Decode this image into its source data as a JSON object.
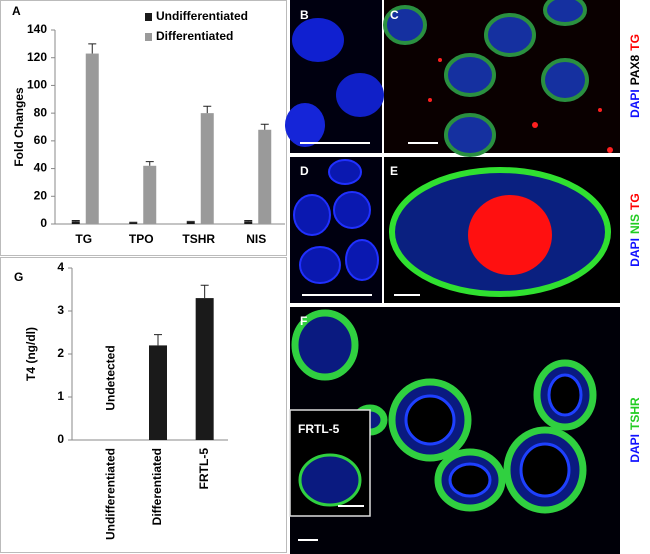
{
  "chart_data": [
    {
      "type": "bar",
      "panel_label": "A",
      "y_label": "Fold Changes",
      "categories": [
        "TG",
        "TPO",
        "TSHR",
        "NIS"
      ],
      "series": [
        {
          "name": "Undifferentiated",
          "color": "#1a1a1a",
          "values": [
            2,
            1,
            1.5,
            2
          ],
          "errors": [
            0.5,
            0.3,
            0.4,
            0.5
          ]
        },
        {
          "name": "Differentiated",
          "color": "#9a9a9a",
          "values": [
            123,
            42,
            80,
            68
          ],
          "errors": [
            7,
            3,
            5,
            4
          ]
        }
      ],
      "ylim": [
        0,
        140
      ],
      "yticks": [
        0,
        20,
        40,
        60,
        80,
        100,
        120,
        140
      ],
      "legend": "top"
    },
    {
      "type": "bar",
      "panel_label": "G",
      "y_label": "T4 (ng/dl)",
      "categories": [
        "Undifferentiated",
        "Differentiated",
        "FRTL-5"
      ],
      "values": [
        null,
        2.2,
        3.3
      ],
      "errors": [
        null,
        0.25,
        0.3
      ],
      "color": "#1a1a1a",
      "annotation": "Undetected",
      "ylim": [
        0,
        4
      ],
      "yticks": [
        0,
        1,
        2,
        3,
        4
      ]
    }
  ],
  "panels": [
    {
      "label": "B"
    },
    {
      "label": "C"
    },
    {
      "label": "D"
    },
    {
      "label": "E"
    },
    {
      "label": "F",
      "inset": "FRTL-5"
    }
  ],
  "stain_labels": [
    [
      {
        "text": "DAPI",
        "color": "#1010ff"
      },
      {
        "text": "PAX8",
        "color": "#000000"
      },
      {
        "text": "TG",
        "color": "#ff0000"
      }
    ],
    [
      {
        "text": "DAPI",
        "color": "#1010ff"
      },
      {
        "text": "NIS",
        "color": "#22cc22"
      },
      {
        "text": "TG",
        "color": "#ff0000"
      }
    ],
    [
      {
        "text": "DAPI",
        "color": "#1010ff"
      },
      {
        "text": "TSHR",
        "color": "#22cc22"
      }
    ]
  ]
}
